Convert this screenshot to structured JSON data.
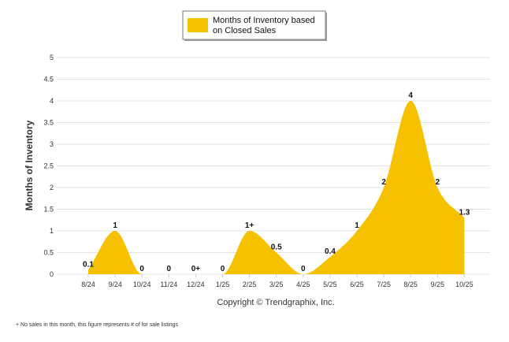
{
  "chart_data": {
    "type": "area",
    "title": "",
    "legend": {
      "label_line1": "Months of Inventory based",
      "label_line2": "on Closed Sales",
      "placement": "top-center",
      "color": "#F5C100"
    },
    "xlabel": "",
    "ylabel": "Months of Inventory",
    "ylim": [
      0,
      5
    ],
    "yticks": [
      "0",
      "0.5",
      "1",
      "1.5",
      "2",
      "2.5",
      "3",
      "3.5",
      "4",
      "4.5",
      "5"
    ],
    "yticks_values": [
      0,
      0.5,
      1,
      1.5,
      2,
      2.5,
      3,
      3.5,
      4,
      4.5,
      5
    ],
    "grid": true,
    "categories": [
      "8/24",
      "9/24",
      "10/24",
      "11/24",
      "12/24",
      "1/25",
      "2/25",
      "3/25",
      "4/25",
      "5/25",
      "6/25",
      "7/25",
      "8/25",
      "9/25",
      "10/25"
    ],
    "series": [
      {
        "name": "Months of Inventory based on Closed Sales",
        "values": [
          0.1,
          1,
          0,
          0,
          0,
          0,
          1,
          0.5,
          0,
          0.4,
          1,
          2,
          4,
          2,
          1.3
        ],
        "data_labels": [
          "0.1",
          "1",
          "0",
          "0",
          "0+",
          "0",
          "1+",
          "0.5",
          "0",
          "0.4",
          "1",
          "2",
          "4",
          "2",
          "1.3"
        ],
        "color": "#F5C100"
      }
    ]
  },
  "copyright": "Copyright © Trendgraphix, Inc.",
  "footnote": "+ No sales in this month, this figure represents # of for sale listings"
}
